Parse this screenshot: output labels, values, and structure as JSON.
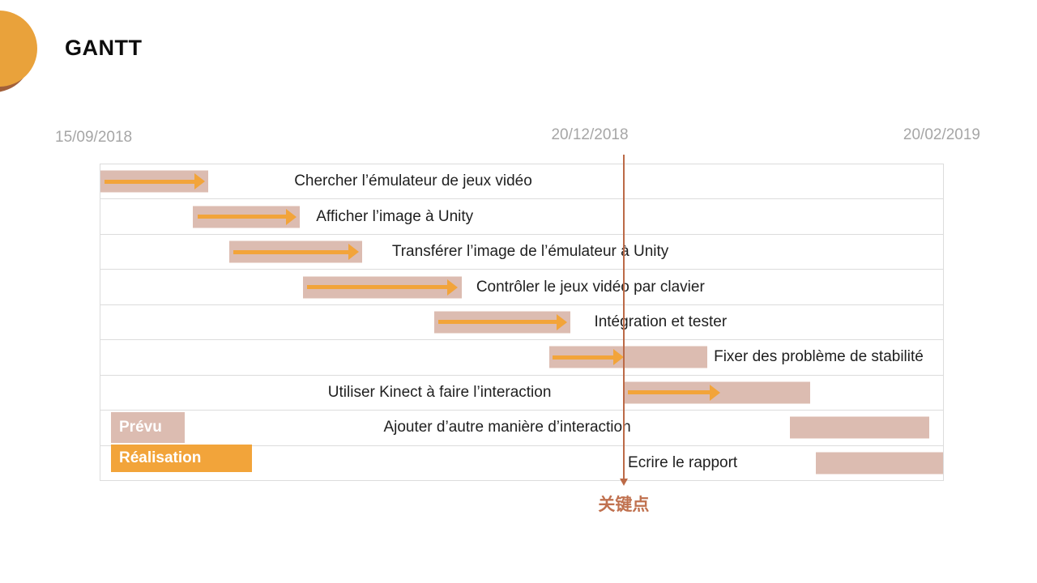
{
  "slide": {
    "title": "GANTT"
  },
  "colors": {
    "planned_bar": "#dcbcb1",
    "realization_arrow": "#f2a43a",
    "milestone_line": "#bc6a47",
    "milestone_text": "#c0714f",
    "date_text": "#a6a6a6",
    "grid_line": "#dcdcdc",
    "circle_orange": "#e9a23b",
    "circle_shadow": "#a2603a"
  },
  "chart_data": {
    "type": "gantt",
    "title": "GANTT",
    "x_axis_labels": [
      "15/09/2018",
      "20/12/2018",
      "20/02/2019"
    ],
    "milestone": {
      "label": "关键点",
      "position_pct": 62.1
    },
    "legend": [
      {
        "label": "Prévu",
        "type": "planned"
      },
      {
        "label": "Réalisation",
        "type": "realized"
      }
    ],
    "tasks": [
      {
        "label": "Chercher l’émulateur de jeux vidéo",
        "label_left_pct": 23.0,
        "planned": {
          "start_pct": 0,
          "width_pct": 12.8
        },
        "realized": {
          "start_pct": 0.5,
          "width_pct": 11.9
        }
      },
      {
        "label": "Afficher l’image à Unity",
        "label_left_pct": 25.6,
        "planned": {
          "start_pct": 11.0,
          "width_pct": 12.7
        },
        "realized": {
          "start_pct": 11.5,
          "width_pct": 11.8
        }
      },
      {
        "label": "Transférer l’image de l’émulateur à Unity",
        "label_left_pct": 34.6,
        "planned": {
          "start_pct": 15.3,
          "width_pct": 15.8
        },
        "realized": {
          "start_pct": 15.8,
          "width_pct": 14.9
        }
      },
      {
        "label": "Contrôler le jeux vidéo par clavier",
        "label_left_pct": 44.6,
        "planned": {
          "start_pct": 24.0,
          "width_pct": 18.9
        },
        "realized": {
          "start_pct": 24.5,
          "width_pct": 17.9
        }
      },
      {
        "label": "Intégration et tester",
        "label_left_pct": 58.6,
        "planned": {
          "start_pct": 39.6,
          "width_pct": 16.2
        },
        "realized": {
          "start_pct": 40.1,
          "width_pct": 15.3
        }
      },
      {
        "label": "Fixer des problème de stabilité",
        "label_left_pct": 72.8,
        "planned": {
          "start_pct": 53.3,
          "width_pct": 18.7
        },
        "realized": {
          "start_pct": 53.7,
          "width_pct": 8.4
        }
      },
      {
        "label": "Utiliser Kinect à faire l’interaction",
        "label_left_pct": 27.0,
        "planned": {
          "start_pct": 62.1,
          "width_pct": 22.1
        },
        "realized": {
          "start_pct": 62.6,
          "width_pct": 11.0
        }
      },
      {
        "label": "Ajouter d’autre manière d’interaction",
        "label_left_pct": 33.6,
        "planned": {
          "start_pct": 81.8,
          "width_pct": 16.6
        }
      },
      {
        "label": "Ecrire le rapport",
        "label_left_pct": 62.6,
        "planned": {
          "start_pct": 84.9,
          "width_pct": 15.1
        }
      }
    ]
  }
}
